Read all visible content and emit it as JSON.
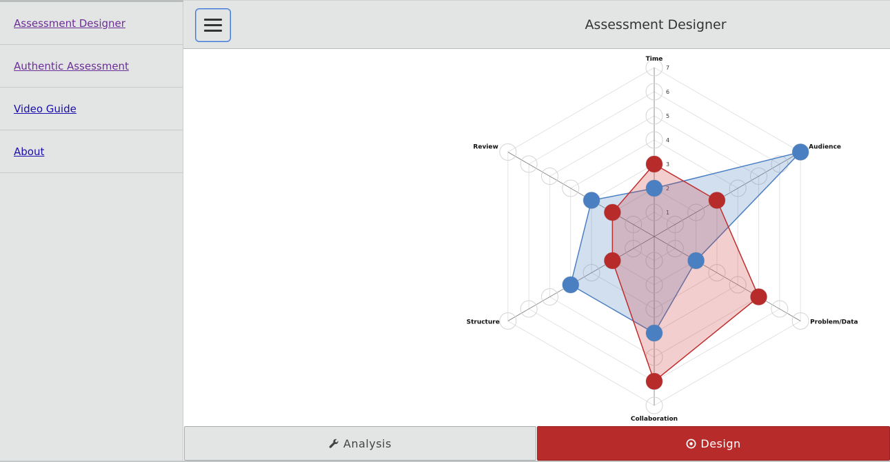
{
  "sidebar": {
    "items": [
      {
        "label": "Assessment Designer",
        "state": "visited"
      },
      {
        "label": "Authentic Assessment",
        "state": "visited"
      },
      {
        "label": "Video Guide",
        "state": "link"
      },
      {
        "label": "About",
        "state": "link"
      }
    ]
  },
  "header": {
    "title": "Assessment Designer",
    "menu_icon": "hamburger-icon"
  },
  "footer": {
    "analysis_label": "Analysis",
    "analysis_icon": "wrench-icon",
    "design_label": "Design",
    "design_icon": "target-icon"
  },
  "colors": {
    "accent_red": "#b72b2b",
    "series_blue": "#4a7fc1",
    "series_red": "#c02c2c"
  },
  "chart_data": {
    "type": "radar",
    "axes": [
      "Time",
      "Audience",
      "Problem/Data",
      "Collaboration",
      "Structure",
      "Review"
    ],
    "ticks": [
      "1",
      "2",
      "3",
      "4",
      "5",
      "6",
      "7"
    ],
    "range": [
      0,
      7
    ],
    "series": [
      {
        "values": [
          2,
          7,
          2,
          4,
          4,
          3
        ]
      },
      {
        "values": [
          3,
          3,
          5,
          6,
          2,
          2
        ]
      }
    ]
  }
}
